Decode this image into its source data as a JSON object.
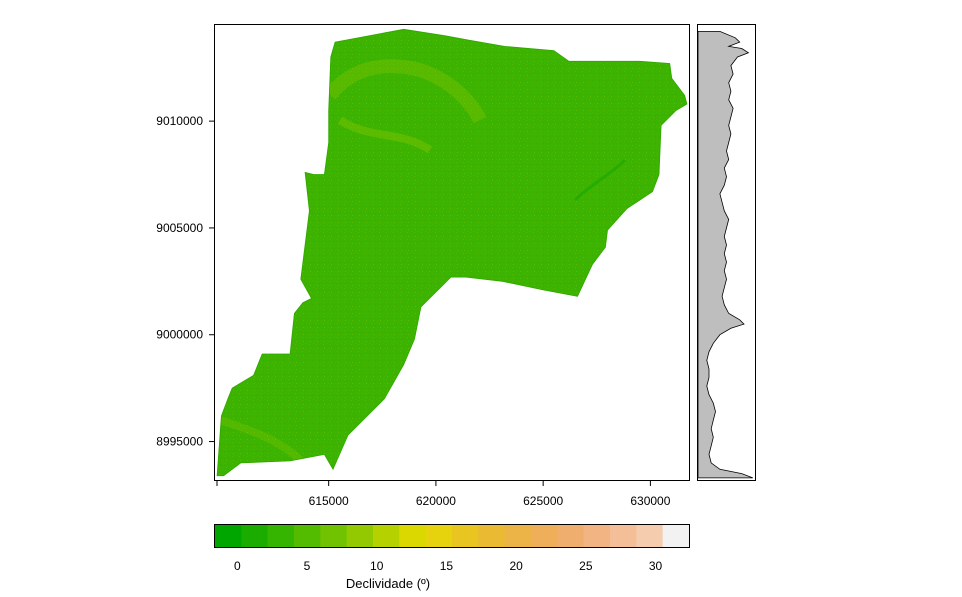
{
  "chart_data": {
    "type": "heatmap",
    "title": "",
    "xlabel": "",
    "ylabel": "",
    "x_ticks": [
      615000,
      620000,
      625000,
      630000
    ],
    "x_tick_labels": [
      "615000",
      "620000",
      "625000",
      "630000"
    ],
    "y_ticks": [
      8995000,
      9000000,
      9005000,
      9010000
    ],
    "y_tick_labels": [
      "8995000",
      "9000000",
      "9005000",
      "9010000"
    ],
    "xlim": [
      609700,
      631800
    ],
    "ylim": [
      8993200,
      9014500
    ],
    "region_outline": [
      [
        615300,
        9013700
      ],
      [
        618500,
        9014300
      ],
      [
        620400,
        9014000
      ],
      [
        621500,
        9013800
      ],
      [
        623200,
        9013500
      ],
      [
        625500,
        9013300
      ],
      [
        626200,
        9012800
      ],
      [
        629500,
        9012800
      ],
      [
        630900,
        9012700
      ],
      [
        631000,
        9012000
      ],
      [
        631600,
        9011200
      ],
      [
        631700,
        9010800
      ],
      [
        631200,
        9010500
      ],
      [
        630500,
        9009800
      ],
      [
        630400,
        9007500
      ],
      [
        630100,
        9006700
      ],
      [
        628900,
        9005900
      ],
      [
        628000,
        9004900
      ],
      [
        627900,
        9004100
      ],
      [
        627300,
        9003300
      ],
      [
        626600,
        9001800
      ],
      [
        625000,
        9002100
      ],
      [
        623100,
        9002500
      ],
      [
        621400,
        9002700
      ],
      [
        620700,
        9002700
      ],
      [
        619300,
        9001300
      ],
      [
        619000,
        8999800
      ],
      [
        618500,
        8998600
      ],
      [
        617600,
        8997000
      ],
      [
        615900,
        8995300
      ],
      [
        615200,
        8993700
      ],
      [
        614800,
        8994400
      ],
      [
        613200,
        8994100
      ],
      [
        610900,
        8994000
      ],
      [
        610100,
        8993400
      ],
      [
        609800,
        8993400
      ],
      [
        610000,
        8996200
      ],
      [
        610300,
        8997000
      ],
      [
        610500,
        8997500
      ],
      [
        611500,
        8998100
      ],
      [
        611900,
        8999100
      ],
      [
        612300,
        8999100
      ],
      [
        612900,
        8999100
      ],
      [
        613200,
        8999100
      ],
      [
        613400,
        9001000
      ],
      [
        613800,
        9001500
      ],
      [
        614200,
        9001700
      ],
      [
        613700,
        9002600
      ],
      [
        614100,
        9005800
      ],
      [
        613900,
        9007600
      ],
      [
        614300,
        9007500
      ],
      [
        614800,
        9007500
      ],
      [
        615000,
        9009000
      ],
      [
        615000,
        9010500
      ],
      [
        615100,
        9013000
      ]
    ],
    "side_profile": [
      [
        9014200,
        1.0
      ],
      [
        9013900,
        1.7
      ],
      [
        9013700,
        1.9
      ],
      [
        9013500,
        1.4
      ],
      [
        9013400,
        2.0
      ],
      [
        9013200,
        2.3
      ],
      [
        9013000,
        1.8
      ],
      [
        9012600,
        1.5
      ],
      [
        9012200,
        1.6
      ],
      [
        9011800,
        1.4
      ],
      [
        9011400,
        1.5
      ],
      [
        9011000,
        1.4
      ],
      [
        9010600,
        1.6
      ],
      [
        9010200,
        1.5
      ],
      [
        9009800,
        1.4
      ],
      [
        9009400,
        1.5
      ],
      [
        9009000,
        1.4
      ],
      [
        9008600,
        1.3
      ],
      [
        9008200,
        1.4
      ],
      [
        9007800,
        1.2
      ],
      [
        9007400,
        1.3
      ],
      [
        9007000,
        1.2
      ],
      [
        9006600,
        1.0
      ],
      [
        9006200,
        1.1
      ],
      [
        9005800,
        1.2
      ],
      [
        9005400,
        1.4
      ],
      [
        9005000,
        1.3
      ],
      [
        9004600,
        1.2
      ],
      [
        9004200,
        1.3
      ],
      [
        9003800,
        1.2
      ],
      [
        9003400,
        1.3
      ],
      [
        9003000,
        1.2
      ],
      [
        9002600,
        1.3
      ],
      [
        9002200,
        1.2
      ],
      [
        9001800,
        1.1
      ],
      [
        9001400,
        1.2
      ],
      [
        9001000,
        1.4
      ],
      [
        9000700,
        1.9
      ],
      [
        9000500,
        2.1
      ],
      [
        9000300,
        1.5
      ],
      [
        9000000,
        1.0
      ],
      [
        8999600,
        0.7
      ],
      [
        8999200,
        0.5
      ],
      [
        8998800,
        0.4
      ],
      [
        8998400,
        0.5
      ],
      [
        8998000,
        0.5
      ],
      [
        8997600,
        0.4
      ],
      [
        8997200,
        0.5
      ],
      [
        8996800,
        0.7
      ],
      [
        8996400,
        0.8
      ],
      [
        8996000,
        0.7
      ],
      [
        8995600,
        0.6
      ],
      [
        8995200,
        0.7
      ],
      [
        8994800,
        0.6
      ],
      [
        8994400,
        0.5
      ],
      [
        8994000,
        0.6
      ],
      [
        8993700,
        1.0
      ],
      [
        8993500,
        2.0
      ],
      [
        8993300,
        2.5
      ]
    ],
    "palette": [
      "#00A600",
      "#1AAD00",
      "#35B400",
      "#53BB00",
      "#71C200",
      "#92C900",
      "#B5D100",
      "#DBD800",
      "#E6D20D",
      "#E8C520",
      "#EABB32",
      "#ECB346",
      "#EEAE5A",
      "#F0AE6E",
      "#F2B483",
      "#F3BE98",
      "#F5CDAE",
      "#F2F2F2"
    ],
    "legend": {
      "title": "Declividade (º)",
      "range": [
        -1.6,
        32.4
      ],
      "ticks": [
        0,
        5,
        10,
        15,
        20,
        25,
        30
      ],
      "tick_labels": [
        "0",
        "5",
        "10",
        "15",
        "20",
        "25",
        "30"
      ]
    },
    "grid": false
  }
}
